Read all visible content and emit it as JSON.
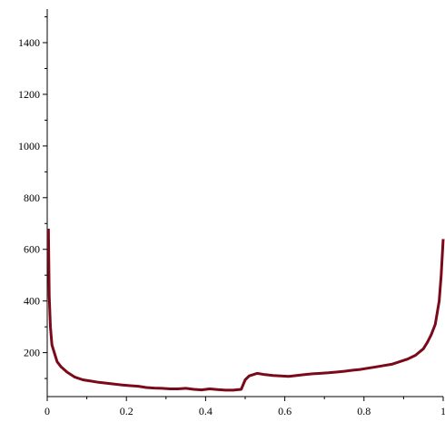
{
  "chart_data": {
    "type": "line",
    "title": "",
    "xlabel": "",
    "ylabel": "",
    "xlim": [
      0,
      1
    ],
    "ylim": [
      30,
      1530
    ],
    "x_ticks": [
      0,
      0.2,
      0.4,
      0.6,
      0.8,
      1
    ],
    "x_tick_labels": [
      "0",
      "0.2",
      "0.4",
      "0.6",
      "0.8",
      "1"
    ],
    "y_ticks": [
      200,
      400,
      600,
      800,
      1000,
      1200,
      1400
    ],
    "y_tick_labels": [
      "200",
      "400",
      "600",
      "800",
      "1000",
      "1200",
      "1400"
    ],
    "grid": false,
    "line_color": "#7a0a1a",
    "series": [
      {
        "x": [
          0.003,
          0.005,
          0.008,
          0.012,
          0.018,
          0.025,
          0.035,
          0.05,
          0.07,
          0.09,
          0.11,
          0.13,
          0.15,
          0.17,
          0.19,
          0.21,
          0.23,
          0.25,
          0.27,
          0.29,
          0.31,
          0.33,
          0.35,
          0.37,
          0.39,
          0.41,
          0.43,
          0.45,
          0.47,
          0.49,
          0.5,
          0.51,
          0.53,
          0.55,
          0.57,
          0.59,
          0.61,
          0.63,
          0.65,
          0.67,
          0.69,
          0.71,
          0.73,
          0.75,
          0.77,
          0.79,
          0.81,
          0.83,
          0.85,
          0.87,
          0.89,
          0.91,
          0.93,
          0.95,
          0.96,
          0.97,
          0.98,
          0.99,
          0.995,
          1.0
        ],
        "y": [
          680,
          420,
          300,
          230,
          200,
          165,
          145,
          125,
          105,
          95,
          90,
          85,
          82,
          78,
          75,
          72,
          70,
          65,
          63,
          62,
          60,
          60,
          62,
          58,
          56,
          60,
          57,
          55,
          55,
          58,
          95,
          110,
          120,
          115,
          112,
          110,
          108,
          112,
          115,
          118,
          120,
          122,
          125,
          128,
          132,
          135,
          140,
          145,
          150,
          155,
          165,
          175,
          190,
          215,
          240,
          270,
          310,
          400,
          500,
          640
        ]
      }
    ]
  }
}
